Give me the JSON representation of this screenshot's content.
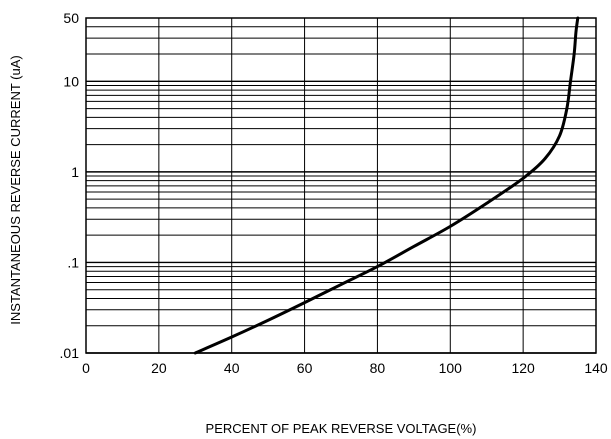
{
  "chart_data": {
    "type": "line",
    "xlabel": "PERCENT OF PEAK REVERSE VOLTAGE(%)",
    "ylabel": "INSTANTANEOUS REVERSE CURRENT (uA)",
    "x_scale": "linear",
    "y_scale": "log",
    "xlim": [
      0,
      140
    ],
    "ylim": [
      0.01,
      50
    ],
    "x_ticks": [
      0,
      20,
      40,
      60,
      80,
      100,
      120,
      140
    ],
    "x_tick_labels": [
      "0",
      "20",
      "40",
      "60",
      "80",
      "100",
      "120",
      "140"
    ],
    "y_ticks": [
      0.01,
      0.1,
      1,
      10,
      50
    ],
    "y_tick_labels": [
      ".01",
      ".1",
      "1",
      "10",
      "50"
    ],
    "grid": true,
    "series": [
      {
        "color": "#000000",
        "x": [
          30,
          40,
          50,
          60,
          70,
          80,
          90,
          100,
          110,
          120,
          126,
          130,
          132,
          133,
          134,
          134.5,
          135
        ],
        "y": [
          0.01,
          0.015,
          0.023,
          0.036,
          0.057,
          0.09,
          0.15,
          0.25,
          0.45,
          0.85,
          1.4,
          2.5,
          5,
          10,
          20,
          35,
          50
        ]
      }
    ]
  }
}
